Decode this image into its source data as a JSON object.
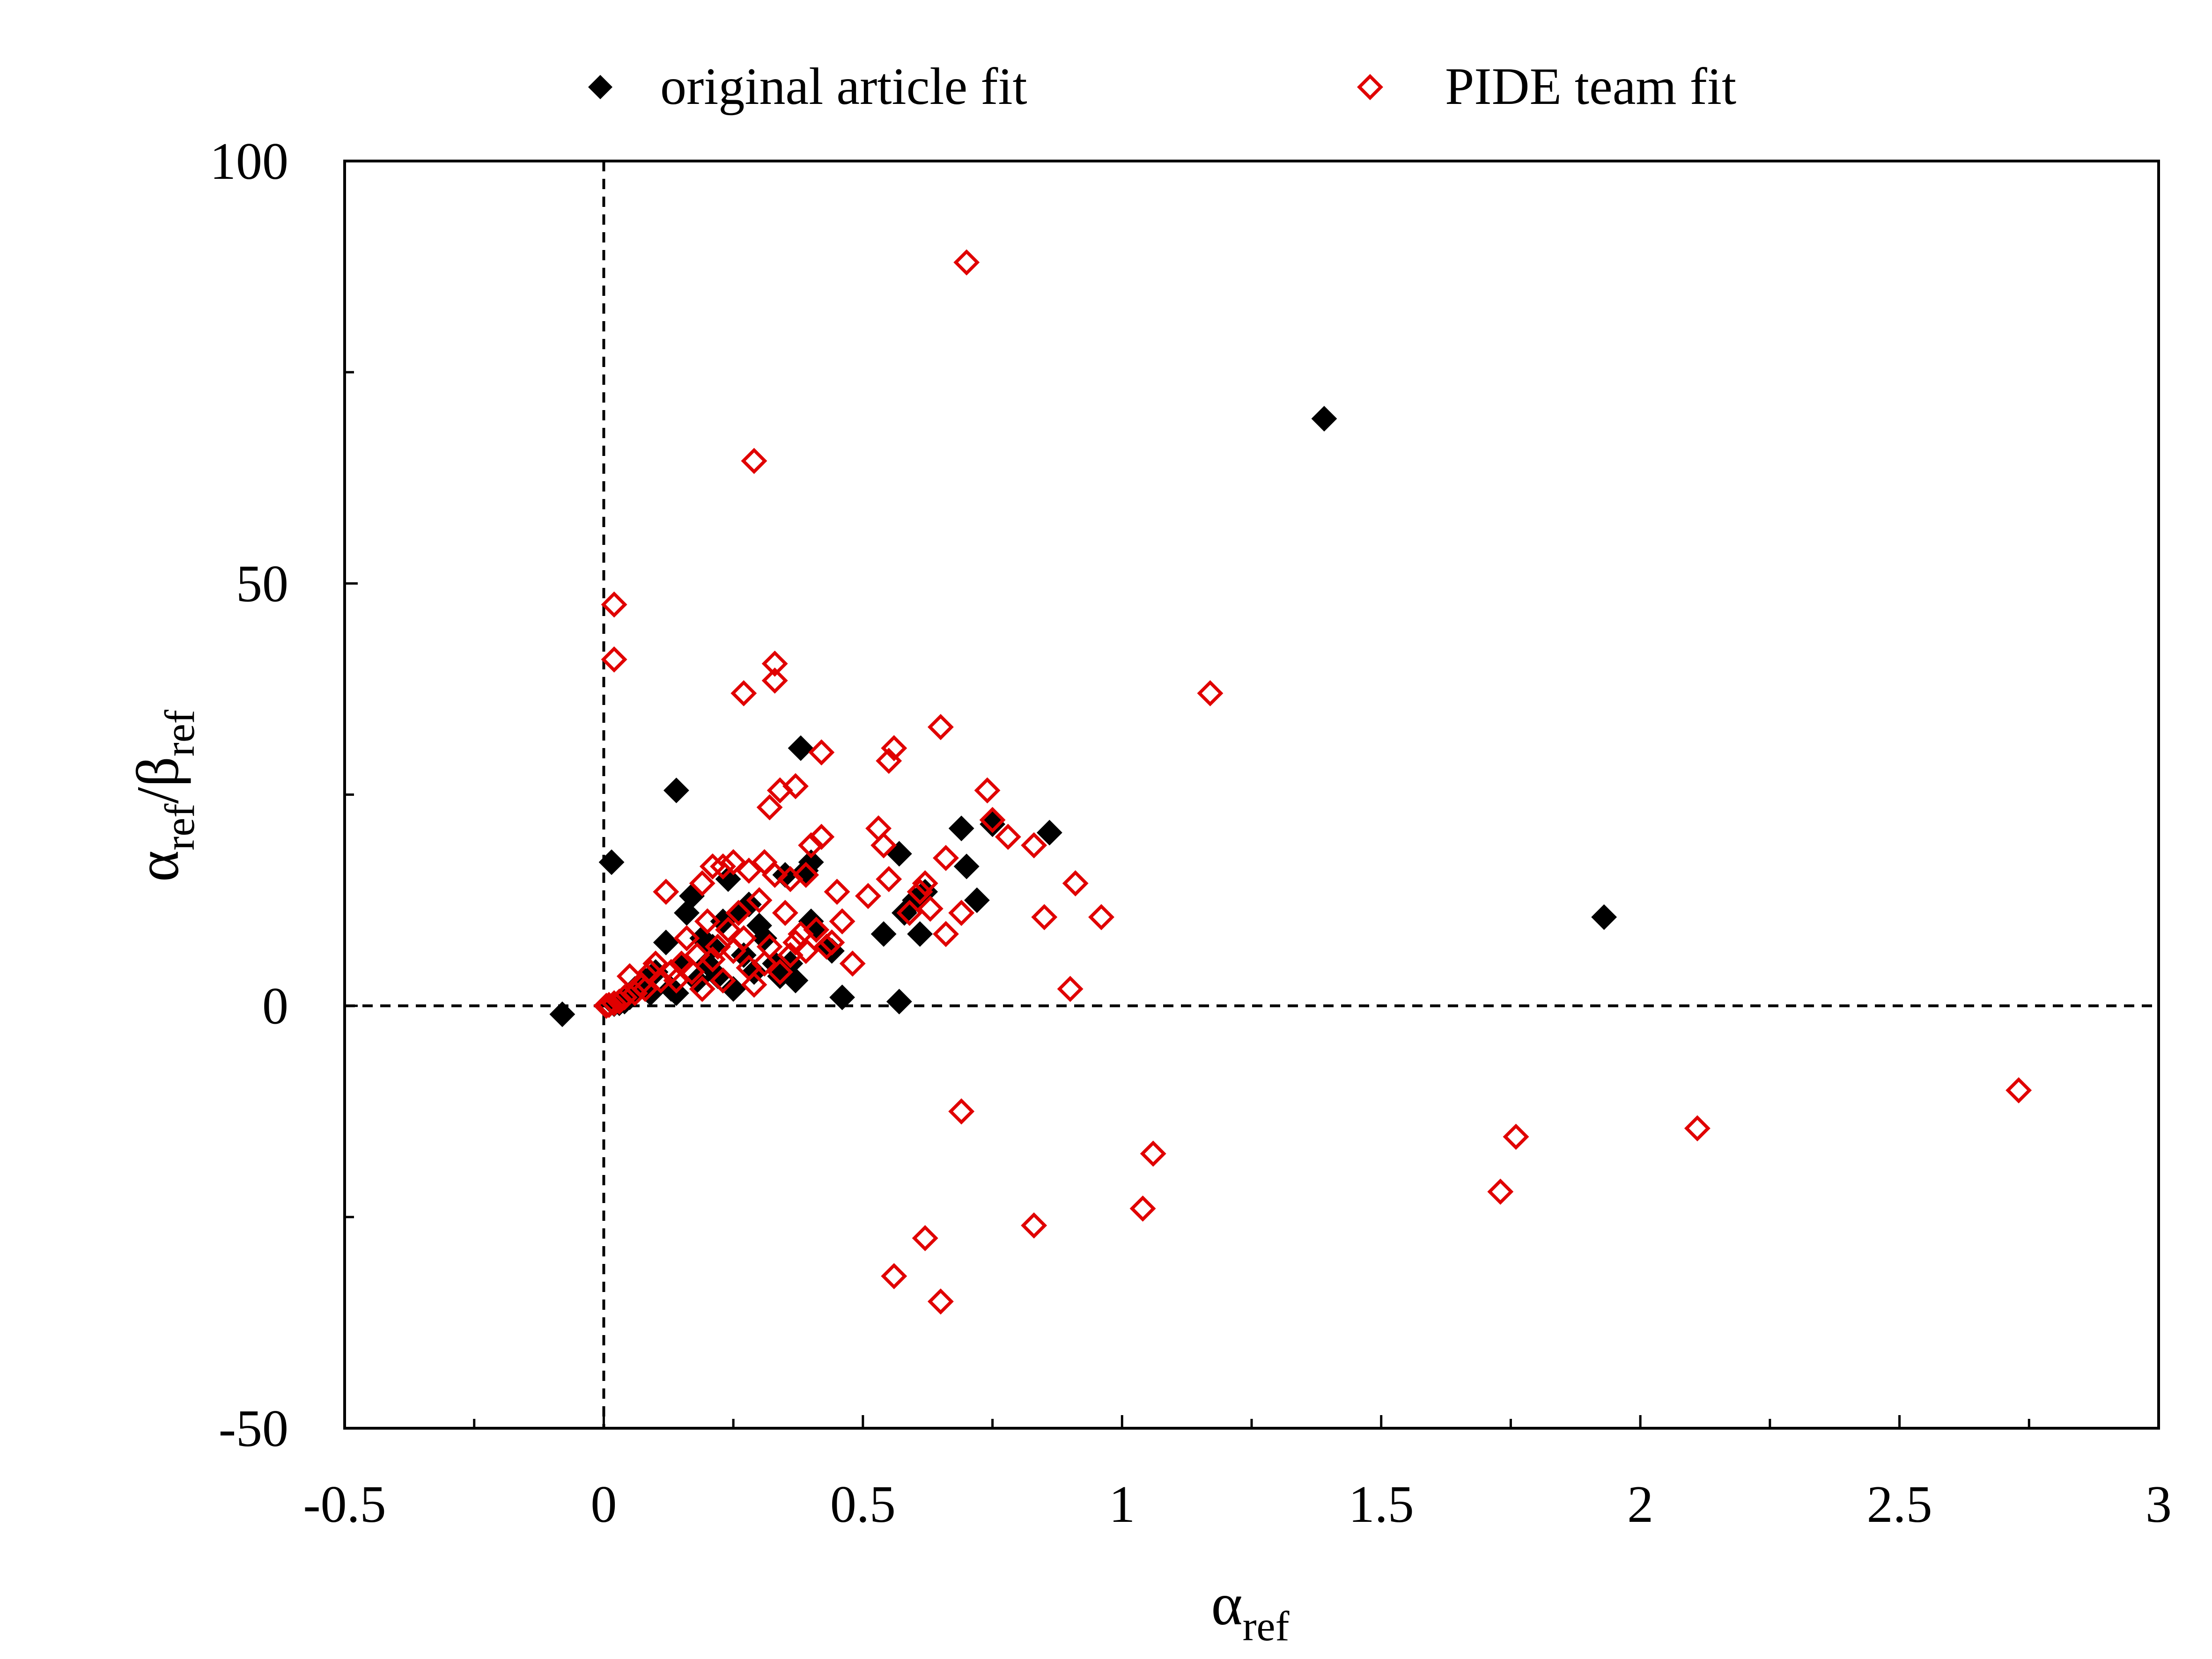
{
  "chart_data": {
    "type": "scatter",
    "title": "",
    "xlabel": {
      "symbol": "α",
      "sub": "ref"
    },
    "ylabel": {
      "num_symbol": "α",
      "num_sub": "ref",
      "sep": "/",
      "den_symbol": "β",
      "den_sub": "ref"
    },
    "xlim": [
      -0.5,
      3
    ],
    "ylim": [
      -50,
      100
    ],
    "xticks": [
      -0.5,
      0,
      0.5,
      1,
      1.5,
      2,
      2.5,
      3
    ],
    "xtick_labels": [
      "-0.5",
      "0",
      "0.5",
      "1",
      "1.5",
      "2",
      "2.5",
      "3"
    ],
    "yticks": [
      -50,
      0,
      50,
      100
    ],
    "ytick_labels": [
      "-50",
      "0",
      "50",
      "100"
    ],
    "y_minor_ticks": [
      -25,
      25,
      75
    ],
    "x_minor_ticks": [
      -0.25,
      0.25,
      0.75,
      1.25,
      1.75,
      2.25,
      2.75
    ],
    "reference_lines": {
      "x": 0,
      "y": 0,
      "style": "dashed"
    },
    "grid": false,
    "legend_position": "top-center",
    "series": [
      {
        "name": "original article fit",
        "marker": "filled-diamond",
        "color": "#000000",
        "points": [
          [
            -0.08,
            -1
          ],
          [
            0.015,
            17
          ],
          [
            0.14,
            25.5
          ],
          [
            0.38,
            30.5
          ],
          [
            1.39,
            69.5
          ],
          [
            1.93,
            10.5
          ],
          [
            0.86,
            20.5
          ],
          [
            0.75,
            21.5
          ],
          [
            0.69,
            21
          ],
          [
            0.7,
            16.5
          ],
          [
            0.72,
            12.5
          ],
          [
            0.57,
            18
          ],
          [
            0.54,
            8.5
          ],
          [
            0.58,
            11
          ],
          [
            0.6,
            12.5
          ],
          [
            0.61,
            8.5
          ],
          [
            0.62,
            13.5
          ],
          [
            0.46,
            1
          ],
          [
            0.57,
            0.5
          ],
          [
            0.4,
            10
          ],
          [
            0.39,
            16
          ],
          [
            0.4,
            17
          ],
          [
            0.35,
            15.5
          ],
          [
            0.37,
            3
          ],
          [
            0.41,
            9
          ],
          [
            0.43,
            7
          ],
          [
            0.44,
            6.5
          ],
          [
            0.36,
            5
          ],
          [
            0.24,
            15
          ],
          [
            0.23,
            10
          ],
          [
            0.26,
            11
          ],
          [
            0.25,
            2
          ],
          [
            0.21,
            7
          ],
          [
            0.19,
            8
          ],
          [
            0.17,
            13
          ],
          [
            0.16,
            11
          ],
          [
            0.15,
            5
          ],
          [
            0.12,
            7.5
          ],
          [
            0.1,
            4
          ],
          [
            0.13,
            2
          ],
          [
            0.08,
            3
          ],
          [
            0.09,
            1.5
          ],
          [
            0.06,
            2
          ],
          [
            0.05,
            1
          ],
          [
            0.04,
            0.5
          ],
          [
            0.03,
            0.3
          ],
          [
            0.02,
            0.2
          ],
          [
            0.18,
            3
          ],
          [
            0.2,
            5
          ],
          [
            0.22,
            3.5
          ],
          [
            0.27,
            6
          ],
          [
            0.29,
            4
          ],
          [
            0.31,
            8
          ],
          [
            0.33,
            5
          ],
          [
            0.34,
            3.5
          ],
          [
            0.3,
            9.5
          ],
          [
            0.28,
            12
          ],
          [
            0.14,
            1.5
          ]
        ]
      },
      {
        "name": "PIDE team fit",
        "marker": "open-diamond",
        "color": "#e00000",
        "points": [
          [
            0.7,
            88
          ],
          [
            0.29,
            64.5
          ],
          [
            0.02,
            47.5
          ],
          [
            0.02,
            41
          ],
          [
            0.33,
            40.5
          ],
          [
            0.33,
            38.5
          ],
          [
            0.27,
            37
          ],
          [
            1.17,
            37
          ],
          [
            0.65,
            33
          ],
          [
            0.56,
            30.5
          ],
          [
            0.42,
            30
          ],
          [
            0.55,
            29
          ],
          [
            0.37,
            26
          ],
          [
            0.34,
            25.5
          ],
          [
            0.74,
            25.5
          ],
          [
            0.32,
            23.5
          ],
          [
            0.75,
            22
          ],
          [
            0.53,
            21
          ],
          [
            0.78,
            20
          ],
          [
            0.42,
            20
          ],
          [
            0.54,
            19
          ],
          [
            0.4,
            19
          ],
          [
            0.83,
            19
          ],
          [
            0.66,
            17.5
          ],
          [
            0.25,
            17
          ],
          [
            0.31,
            17
          ],
          [
            0.21,
            16.5
          ],
          [
            0.23,
            16.5
          ],
          [
            0.28,
            16
          ],
          [
            0.33,
            15.5
          ],
          [
            0.39,
            15.5
          ],
          [
            0.36,
            15
          ],
          [
            0.55,
            15
          ],
          [
            0.62,
            14.5
          ],
          [
            0.61,
            13.5
          ],
          [
            0.91,
            14.5
          ],
          [
            0.12,
            13.5
          ],
          [
            0.19,
            14.5
          ],
          [
            0.45,
            13.5
          ],
          [
            0.51,
            13
          ],
          [
            0.63,
            11.5
          ],
          [
            0.69,
            11
          ],
          [
            0.85,
            10.5
          ],
          [
            0.96,
            10.5
          ],
          [
            0.59,
            11
          ],
          [
            0.35,
            11
          ],
          [
            0.26,
            11
          ],
          [
            0.3,
            12.5
          ],
          [
            0.2,
            10
          ],
          [
            0.46,
            10
          ],
          [
            0.41,
            9
          ],
          [
            0.66,
            8.5
          ],
          [
            0.38,
            8.5
          ],
          [
            0.48,
            5
          ],
          [
            0.44,
            7.5
          ],
          [
            0.32,
            7
          ],
          [
            0.27,
            8
          ],
          [
            0.24,
            9
          ],
          [
            0.22,
            7
          ],
          [
            0.18,
            6
          ],
          [
            0.16,
            8
          ],
          [
            0.15,
            5
          ],
          [
            0.13,
            4
          ],
          [
            0.11,
            3
          ],
          [
            0.1,
            5
          ],
          [
            0.09,
            4
          ],
          [
            0.07,
            2.5
          ],
          [
            0.05,
            3.5
          ],
          [
            0.04,
            1
          ],
          [
            0.03,
            0.5
          ],
          [
            0.02,
            0.3
          ],
          [
            0.01,
            0.1
          ],
          [
            0.005,
            0
          ],
          [
            0.06,
            1.5
          ],
          [
            0.08,
            2
          ],
          [
            0.14,
            3
          ],
          [
            0.17,
            4
          ],
          [
            0.19,
            2
          ],
          [
            0.21,
            5.5
          ],
          [
            0.23,
            3
          ],
          [
            0.25,
            6.5
          ],
          [
            0.28,
            4.5
          ],
          [
            0.29,
            2.5
          ],
          [
            0.31,
            5
          ],
          [
            0.34,
            4
          ],
          [
            0.36,
            6
          ],
          [
            0.37,
            7.5
          ],
          [
            0.39,
            6.5
          ],
          [
            0.43,
            7
          ],
          [
            0.9,
            2
          ],
          [
            0.69,
            -12.5
          ],
          [
            1.06,
            -17.5
          ],
          [
            1.76,
            -15.5
          ],
          [
            2.11,
            -14.5
          ],
          [
            2.73,
            -10
          ],
          [
            1.73,
            -22
          ],
          [
            1.04,
            -24
          ],
          [
            0.83,
            -26
          ],
          [
            0.62,
            -27.5
          ],
          [
            0.56,
            -32
          ],
          [
            0.65,
            -35
          ]
        ]
      }
    ]
  }
}
